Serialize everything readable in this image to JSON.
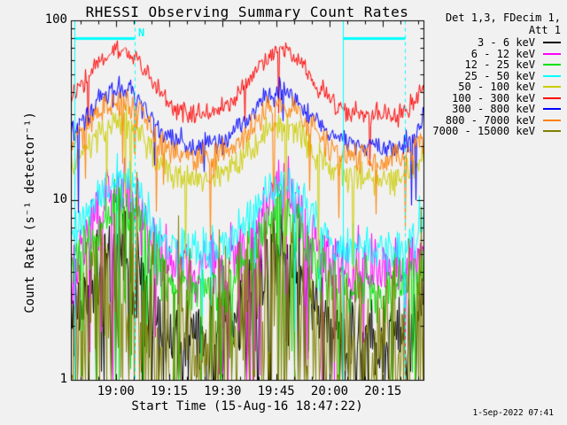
{
  "title": "RHESSI Observing Summary Count Rates",
  "generated_timestamp": "1-Sep-2022 07:41",
  "legend": {
    "header_line1": "Det 1,3, FDecim 1,",
    "header_line2": "Att 1"
  },
  "colors": {
    "background": "#F1F1F1",
    "axis": "#000000",
    "annotation": "#00FFFF"
  },
  "chart_data": {
    "type": "line",
    "title": "RHESSI Observing Summary Count Rates",
    "xlabel": "Start Time (15-Aug-16 18:47:22)",
    "ylabel": "Count Rate (s⁻¹ detector⁻¹)",
    "x_axis": {
      "start_time_label": "15-Aug-16 18:47:22",
      "range_minutes": [
        0,
        99
      ],
      "major_ticks": [
        {
          "t": 12.63,
          "label": "19:00"
        },
        {
          "t": 27.63,
          "label": "19:15"
        },
        {
          "t": 42.63,
          "label": "19:30"
        },
        {
          "t": 57.63,
          "label": "19:45"
        },
        {
          "t": 72.63,
          "label": "20:00"
        },
        {
          "t": 87.63,
          "label": "20:15"
        }
      ],
      "minor_tick_every_minutes": 5,
      "first_minor_t": 2.63
    },
    "y_axis": {
      "scale": "log",
      "range": [
        1,
        100
      ],
      "major_ticks": [
        {
          "v": 1,
          "label": "1"
        },
        {
          "v": 10,
          "label": "10"
        },
        {
          "v": 100,
          "label": "100"
        }
      ],
      "grid": false
    },
    "modulation_shape": [
      [
        0,
        0.3
      ],
      [
        4,
        0.55
      ],
      [
        8,
        0.84
      ],
      [
        12,
        0.97
      ],
      [
        15,
        1.0
      ],
      [
        19,
        0.85
      ],
      [
        23,
        0.45
      ],
      [
        28,
        0.12
      ],
      [
        33,
        0.03
      ],
      [
        38,
        0.02
      ],
      [
        43,
        0.1
      ],
      [
        48,
        0.38
      ],
      [
        53,
        0.75
      ],
      [
        57,
        0.95
      ],
      [
        60,
        1.0
      ],
      [
        64,
        0.82
      ],
      [
        68,
        0.5
      ],
      [
        73,
        0.18
      ],
      [
        78,
        0.05
      ],
      [
        84,
        0.01
      ],
      [
        90,
        0.0
      ],
      [
        94,
        0.06
      ],
      [
        97,
        0.28
      ],
      [
        99,
        0.48
      ]
    ],
    "series": [
      {
        "name": "3 - 6 keV",
        "color": "#000000",
        "baseline": 1.7,
        "peak": 5.4,
        "sigma": 0.13,
        "shape_pow": 1.3,
        "drop_prob": 0.1,
        "drop_depth": 1.2,
        "floor": 1,
        "seed": 11
      },
      {
        "name": "6 - 12 keV",
        "color": "#FF00FF",
        "baseline": 4.0,
        "peak": 11,
        "sigma": 0.1,
        "shape_pow": 1.3,
        "drop_prob": 0.05,
        "drop_depth": 0.8,
        "floor": 1,
        "seed": 22
      },
      {
        "name": "12 - 25 keV",
        "color": "#00E100",
        "baseline": 3.3,
        "peak": 9,
        "sigma": 0.085,
        "shape_pow": 1.3,
        "drop_prob": 0.06,
        "drop_depth": 0.9,
        "floor": 1,
        "seed": 33
      },
      {
        "name": "25 - 50 keV",
        "color": "#00FFFF",
        "baseline": 5.3,
        "peak": 13,
        "sigma": 0.065,
        "shape_pow": 1.2,
        "drop_prob": 0.03,
        "drop_depth": 0.6,
        "floor": 1,
        "seed": 44
      },
      {
        "name": "50 - 100 keV",
        "color": "#CCCC00",
        "baseline": 13,
        "peak": 27,
        "sigma": 0.045,
        "shape_pow": 1.0,
        "drop_prob": 0.02,
        "drop_depth": 0.5,
        "floor": 1,
        "seed": 55
      },
      {
        "name": "100 - 300 keV",
        "color": "#FF0000",
        "baseline": 30,
        "peak": 70,
        "sigma": 0.027,
        "shape_pow": 1.0,
        "drop_prob": 0.012,
        "drop_depth": 0.3,
        "floor": 1,
        "seed": 66
      },
      {
        "name": "300 - 800 keV",
        "color": "#0000FF",
        "baseline": 20,
        "peak": 41,
        "sigma": 0.033,
        "shape_pow": 1.0,
        "drop_prob": 0.012,
        "drop_depth": 0.35,
        "floor": 1,
        "seed": 77
      },
      {
        "name": "800 - 7000 keV",
        "color": "#FF8000",
        "baseline": 17,
        "peak": 35,
        "sigma": 0.04,
        "shape_pow": 1.0,
        "drop_prob": 0.018,
        "drop_depth": 0.4,
        "floor": 1,
        "seed": 88
      },
      {
        "name": "7000 - 15000 keV",
        "color": "#7F7F00",
        "baseline": 1.9,
        "peak": 4.3,
        "sigma": 0.24,
        "shape_pow": 1.2,
        "drop_prob": 0.3,
        "drop_depth": 0.9,
        "floor": 1,
        "seed": 99
      }
    ],
    "night_intervals": {
      "color": "#00FFFF",
      "label": "N",
      "bar_value": 80,
      "intervals_minutes": [
        [
          1.0,
          17.9
        ],
        [
          76.4,
          93.8
        ]
      ]
    }
  }
}
